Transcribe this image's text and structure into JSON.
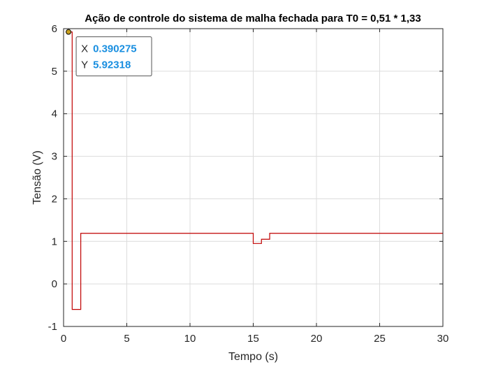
{
  "chart_data": {
    "type": "line",
    "title": "Ação de controle do sistema de malha fechada para T0 = 0,51  * 1,33",
    "xlabel": "Tempo (s)",
    "ylabel": "Tensão (V)",
    "xlim": [
      0,
      30
    ],
    "ylim": [
      -1,
      6
    ],
    "xticks": [
      0,
      5,
      10,
      15,
      20,
      25,
      30
    ],
    "yticks": [
      -1,
      0,
      1,
      2,
      3,
      4,
      5,
      6
    ],
    "grid": true,
    "series": [
      {
        "color": "#c00000",
        "step": true,
        "x": [
          0.39,
          0.68,
          0.68,
          1.36,
          1.36,
          15.0,
          15.0,
          15.65,
          15.65,
          16.3,
          16.3,
          30
        ],
        "y": [
          5.92318,
          5.92318,
          -0.6,
          -0.6,
          1.19,
          1.19,
          0.95,
          0.95,
          1.05,
          1.05,
          1.19,
          1.19
        ]
      }
    ],
    "datatip": {
      "x_label": "X",
      "x_value": "0.390275",
      "y_label": "Y",
      "y_value": "5.92318",
      "point": [
        0.390275,
        5.92318
      ]
    }
  }
}
